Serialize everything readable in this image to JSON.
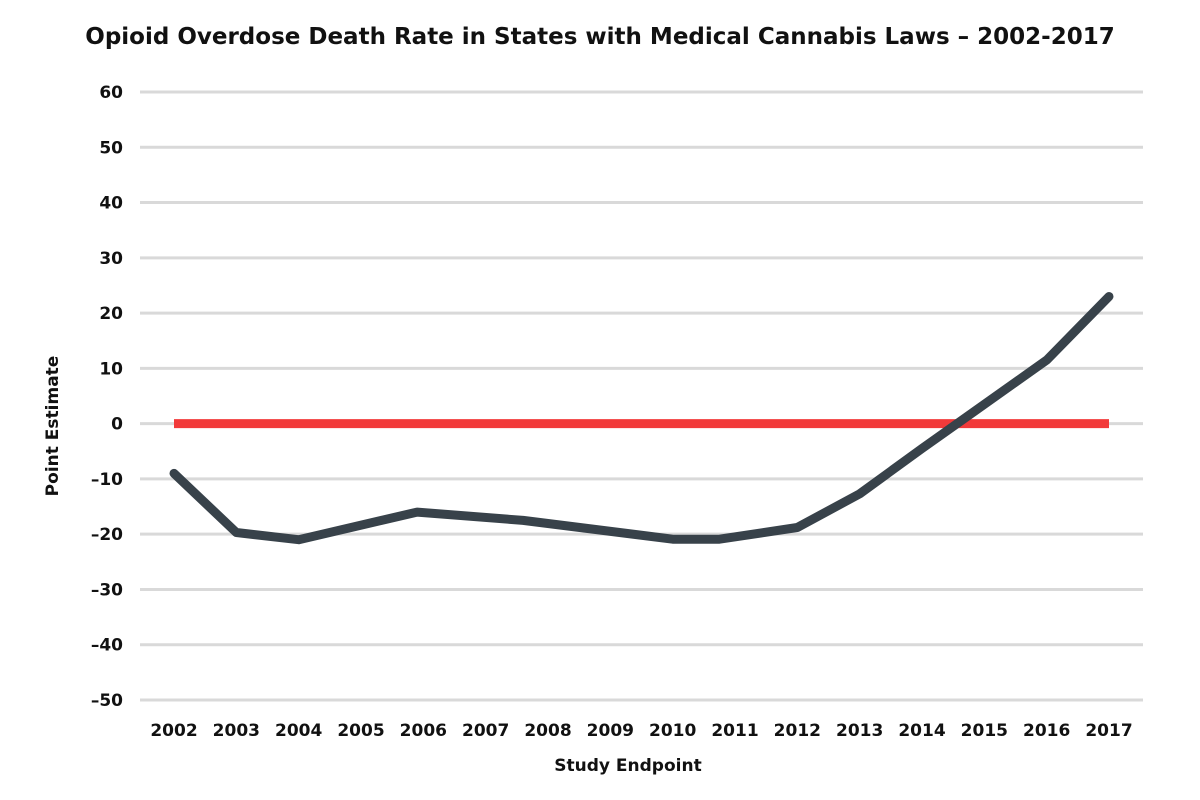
{
  "chart_data": {
    "type": "line",
    "title": "Opioid Overdose Death Rate in States with Medical Cannabis Laws – 2002-2017",
    "xlabel": "Study Endpoint",
    "ylabel": "Point Estimate",
    "categories": [
      "2002",
      "2003",
      "2004",
      "2005",
      "2006",
      "2007",
      "2008",
      "2009",
      "2010",
      "2011",
      "2012",
      "2013",
      "2014",
      "2015",
      "2016",
      "2017"
    ],
    "y_ticks": [
      "60",
      "50",
      "40",
      "30",
      "20",
      "10",
      "0",
      "–10",
      "–20",
      "–30",
      "–40",
      "–50"
    ],
    "ylim": [
      -50,
      60
    ],
    "grid": true,
    "legend": "none",
    "series": [
      {
        "color": "#38424a",
        "x": [
          2002,
          2003,
          2004,
          2005.9,
          2007.6,
          2010,
          2010.75,
          2012,
          2013,
          2014,
          2014.85,
          2016,
          2017
        ],
        "values": [
          -9,
          -19.7,
          -21,
          -16,
          -17.5,
          -20.9,
          -20.9,
          -18.8,
          -12.7,
          -4.5,
          2.3,
          11.5,
          23
        ]
      },
      {
        "color": "#f23a3a",
        "x": [
          2002,
          2017
        ],
        "values": [
          0,
          0
        ]
      }
    ]
  }
}
